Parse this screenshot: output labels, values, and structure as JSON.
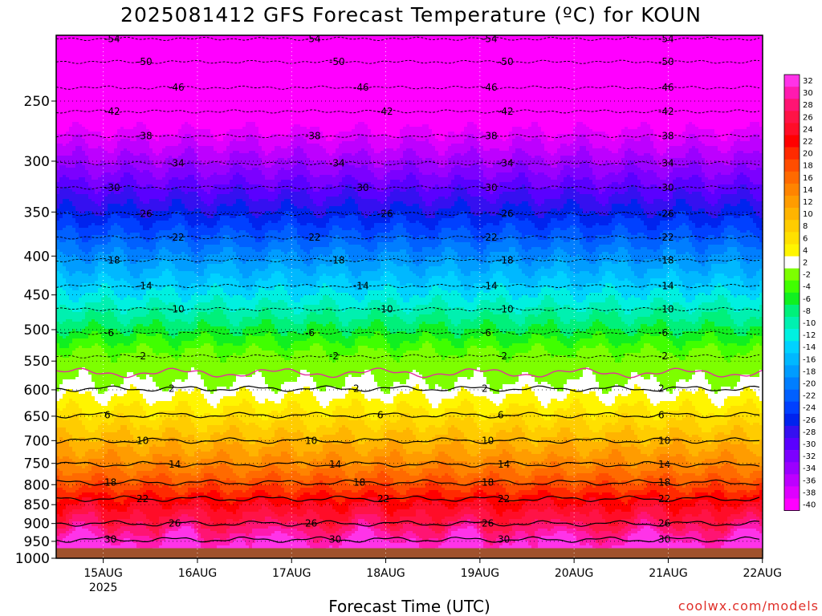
{
  "chart_data": {
    "type": "heatmap",
    "title": "2025081412 GFS Forecast Temperature (ºC) for KOUN",
    "xlabel": "Forecast Time (UTC)",
    "credit": "coolwx.com/models",
    "y_axis": {
      "quantity": "pressure (hPa)",
      "inverted": true,
      "log_scale": true,
      "range": [
        1000,
        200
      ],
      "tick_labels": [
        250,
        300,
        350,
        400,
        450,
        500,
        550,
        600,
        650,
        700,
        750,
        800,
        850,
        900,
        950,
        1000
      ]
    },
    "x_axis": {
      "range": [
        "2025-08-14T12",
        "2025-08-22T00"
      ],
      "ticks": [
        {
          "label": "15AUG",
          "sublabel": "2025",
          "time": "2025-08-15T00"
        },
        {
          "label": "16AUG",
          "sublabel": "",
          "time": "2025-08-16T00"
        },
        {
          "label": "17AUG",
          "sublabel": "",
          "time": "2025-08-17T00"
        },
        {
          "label": "18AUG",
          "sublabel": "",
          "time": "2025-08-18T00"
        },
        {
          "label": "19AUG",
          "sublabel": "",
          "time": "2025-08-19T00"
        },
        {
          "label": "20AUG",
          "sublabel": "",
          "time": "2025-08-20T00"
        },
        {
          "label": "21AUG",
          "sublabel": "",
          "time": "2025-08-21T00"
        },
        {
          "label": "22AUG",
          "sublabel": "",
          "time": "2025-08-22T00"
        }
      ]
    },
    "grid": true,
    "colorbar": {
      "levels": [
        32,
        30,
        28,
        26,
        24,
        22,
        20,
        18,
        16,
        14,
        12,
        10,
        8,
        6,
        4,
        2,
        -2,
        -4,
        -6,
        -8,
        -10,
        -12,
        -14,
        -16,
        -18,
        -20,
        -22,
        -24,
        -26,
        -28,
        -30,
        -32,
        -34,
        -36,
        -38,
        -40
      ],
      "colors": [
        "#ff33e8",
        "#ff1aaf",
        "#ff1473",
        "#ff1346",
        "#ff0d28",
        "#ff0000",
        "#ff2a00",
        "#ff4d00",
        "#ff6a00",
        "#ff8400",
        "#ff9c00",
        "#ffb400",
        "#ffcc00",
        "#ffe000",
        "#fff500",
        "#ffffff",
        "#7dff00",
        "#40ff00",
        "#10f020",
        "#00f07a",
        "#00f0b0",
        "#00f0e0",
        "#00d2ff",
        "#00b8ff",
        "#009cff",
        "#007eff",
        "#0060ff",
        "#0040ff",
        "#0023ee",
        "#3510f0",
        "#5a00ff",
        "#7c00ff",
        "#9b00ff",
        "#bd00ff",
        "#de00ff",
        "#ff00ff"
      ]
    },
    "isotherm_labels": [
      -54,
      -50,
      -46,
      -42,
      -38,
      -34,
      -30,
      -26,
      -22,
      -18,
      -14,
      -10,
      -6,
      -2,
      2,
      6,
      10,
      14,
      18,
      22,
      26,
      30
    ],
    "isotherm_levels_hpa": [
      {
        "temp": -54,
        "p": 207
      },
      {
        "temp": -50,
        "p": 222
      },
      {
        "temp": -46,
        "p": 240
      },
      {
        "temp": -42,
        "p": 258
      },
      {
        "temp": -38,
        "p": 278
      },
      {
        "temp": -34,
        "p": 302
      },
      {
        "temp": -30,
        "p": 325
      },
      {
        "temp": -26,
        "p": 352
      },
      {
        "temp": -22,
        "p": 378
      },
      {
        "temp": -18,
        "p": 405
      },
      {
        "temp": -14,
        "p": 438
      },
      {
        "temp": -10,
        "p": 470
      },
      {
        "temp": -6,
        "p": 505
      },
      {
        "temp": -2,
        "p": 542
      },
      {
        "temp": 2,
        "p": 598
      },
      {
        "temp": 6,
        "p": 648
      },
      {
        "temp": 10,
        "p": 700
      },
      {
        "temp": 14,
        "p": 752
      },
      {
        "temp": 18,
        "p": 795
      },
      {
        "temp": 22,
        "p": 835
      },
      {
        "temp": 26,
        "p": 900
      },
      {
        "temp": 30,
        "p": 945
      }
    ],
    "surface_pressure_hpa": 970,
    "ground_color": "#a0522d",
    "freezing_line_color": "#e0309a"
  }
}
